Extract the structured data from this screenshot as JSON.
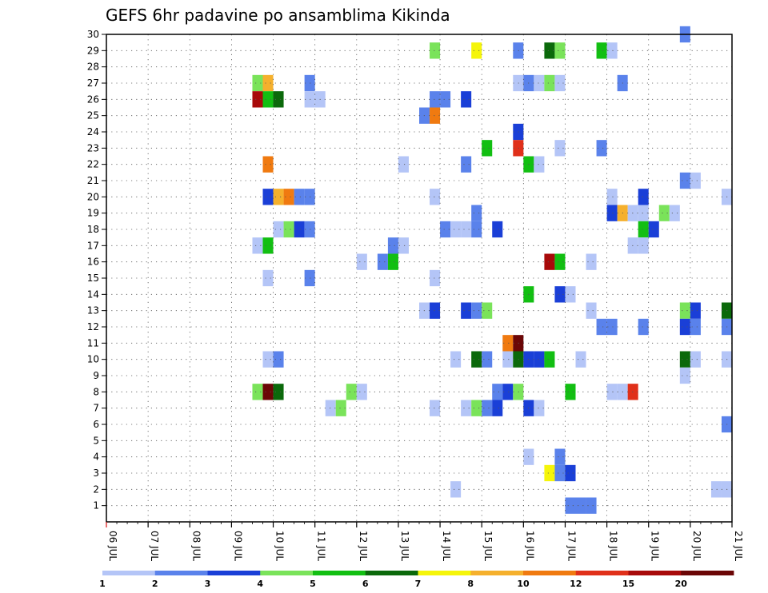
{
  "chart_data": {
    "type": "heatmap",
    "title": "GEFS 6hr padavine po ansamblima Kikinda",
    "xlabel": "",
    "ylabel": "",
    "x_range_days": [
      6,
      21
    ],
    "x_tick_labels": [
      "06 JUL",
      "07 JUL",
      "08 JUL",
      "09 JUL",
      "10 JUL",
      "11 JUL",
      "12 JUL",
      "13 JUL",
      "14 JUL",
      "15 JUL",
      "16 JUL",
      "17 JUL",
      "18 JUL",
      "19 JUL",
      "20 JUL",
      "21 JUL"
    ],
    "y_range": [
      0,
      30
    ],
    "y_tick_labels": [
      "1",
      "2",
      "3",
      "4",
      "5",
      "6",
      "7",
      "8",
      "9",
      "10",
      "11",
      "12",
      "13",
      "14",
      "15",
      "16",
      "17",
      "18",
      "19",
      "20",
      "21",
      "22",
      "23",
      "24",
      "25",
      "26",
      "27",
      "28",
      "29",
      "30"
    ],
    "grid": true,
    "time_step_hours": 6,
    "color_scale": {
      "thresholds": [
        "1",
        "2",
        "3",
        "4",
        "5",
        "6",
        "7",
        "8",
        "10",
        "12",
        "15",
        "20"
      ],
      "colors": [
        "#b4c5f7",
        "#5a82eb",
        "#1a3fd7",
        "#7ae35a",
        "#12bf12",
        "#0b690b",
        "#f5f50a",
        "#f5b02d",
        "#f07a10",
        "#e0301a",
        "#a80a0a",
        "#6b0606"
      ]
    },
    "cells": [
      {
        "m": 30,
        "day": 19.875,
        "c": 1
      },
      {
        "m": 29,
        "day": 13.875,
        "c": 3
      },
      {
        "m": 29,
        "day": 14.875,
        "c": 6
      },
      {
        "m": 29,
        "day": 15.875,
        "c": 1
      },
      {
        "m": 29,
        "day": 16.625,
        "c": 5
      },
      {
        "m": 29,
        "day": 16.875,
        "c": 3
      },
      {
        "m": 29,
        "day": 17.875,
        "c": 4
      },
      {
        "m": 29,
        "day": 18.125,
        "c": 0
      },
      {
        "m": 27,
        "day": 9.625,
        "c": 3
      },
      {
        "m": 27,
        "day": 9.875,
        "c": 7
      },
      {
        "m": 27,
        "day": 10.875,
        "c": 1
      },
      {
        "m": 27,
        "day": 15.875,
        "c": 0
      },
      {
        "m": 27,
        "day": 16.125,
        "c": 1
      },
      {
        "m": 27,
        "day": 16.375,
        "c": 0
      },
      {
        "m": 27,
        "day": 16.625,
        "c": 3
      },
      {
        "m": 27,
        "day": 16.875,
        "c": 0
      },
      {
        "m": 27,
        "day": 18.375,
        "c": 1
      },
      {
        "m": 26,
        "day": 9.625,
        "c": 10
      },
      {
        "m": 26,
        "day": 9.875,
        "c": 4
      },
      {
        "m": 26,
        "day": 10.125,
        "c": 5
      },
      {
        "m": 26,
        "day": 10.875,
        "c": 0
      },
      {
        "m": 26,
        "day": 11.125,
        "c": 0
      },
      {
        "m": 26,
        "day": 13.875,
        "c": 1
      },
      {
        "m": 26,
        "day": 14.125,
        "c": 1
      },
      {
        "m": 26,
        "day": 14.625,
        "c": 2
      },
      {
        "m": 25,
        "day": 13.625,
        "c": 1
      },
      {
        "m": 25,
        "day": 13.875,
        "c": 8
      },
      {
        "m": 24,
        "day": 15.875,
        "c": 2
      },
      {
        "m": 23,
        "day": 15.125,
        "c": 4
      },
      {
        "m": 23,
        "day": 15.875,
        "c": 9
      },
      {
        "m": 23,
        "day": 16.875,
        "c": 0
      },
      {
        "m": 23,
        "day": 17.875,
        "c": 1
      },
      {
        "m": 22,
        "day": 9.875,
        "c": 8
      },
      {
        "m": 22,
        "day": 13.125,
        "c": 0
      },
      {
        "m": 22,
        "day": 14.625,
        "c": 1
      },
      {
        "m": 22,
        "day": 16.125,
        "c": 4
      },
      {
        "m": 22,
        "day": 16.375,
        "c": 0
      },
      {
        "m": 21,
        "day": 19.875,
        "c": 1
      },
      {
        "m": 21,
        "day": 20.125,
        "c": 0
      },
      {
        "m": 20,
        "day": 9.875,
        "c": 2
      },
      {
        "m": 20,
        "day": 10.125,
        "c": 7
      },
      {
        "m": 20,
        "day": 10.375,
        "c": 8
      },
      {
        "m": 20,
        "day": 10.625,
        "c": 1
      },
      {
        "m": 20,
        "day": 10.875,
        "c": 1
      },
      {
        "m": 20,
        "day": 13.875,
        "c": 0
      },
      {
        "m": 20,
        "day": 18.125,
        "c": 0
      },
      {
        "m": 20,
        "day": 18.875,
        "c": 2
      },
      {
        "m": 20,
        "day": 20.875,
        "c": 0
      },
      {
        "m": 19,
        "day": 14.875,
        "c": 1
      },
      {
        "m": 19,
        "day": 18.125,
        "c": 2
      },
      {
        "m": 19,
        "day": 18.375,
        "c": 7
      },
      {
        "m": 19,
        "day": 18.625,
        "c": 0
      },
      {
        "m": 19,
        "day": 18.875,
        "c": 0
      },
      {
        "m": 19,
        "day": 19.375,
        "c": 3
      },
      {
        "m": 19,
        "day": 19.625,
        "c": 0
      },
      {
        "m": 18,
        "day": 10.125,
        "c": 0
      },
      {
        "m": 18,
        "day": 10.375,
        "c": 3
      },
      {
        "m": 18,
        "day": 10.625,
        "c": 2
      },
      {
        "m": 18,
        "day": 10.875,
        "c": 1
      },
      {
        "m": 18,
        "day": 14.125,
        "c": 1
      },
      {
        "m": 18,
        "day": 14.375,
        "c": 0
      },
      {
        "m": 18,
        "day": 14.625,
        "c": 0
      },
      {
        "m": 18,
        "day": 14.875,
        "c": 1
      },
      {
        "m": 18,
        "day": 15.375,
        "c": 2
      },
      {
        "m": 18,
        "day": 18.875,
        "c": 4
      },
      {
        "m": 18,
        "day": 19.125,
        "c": 2
      },
      {
        "m": 17,
        "day": 9.625,
        "c": 0
      },
      {
        "m": 17,
        "day": 9.875,
        "c": 4
      },
      {
        "m": 17,
        "day": 12.875,
        "c": 1
      },
      {
        "m": 17,
        "day": 13.125,
        "c": 0
      },
      {
        "m": 17,
        "day": 18.625,
        "c": 0
      },
      {
        "m": 17,
        "day": 18.875,
        "c": 0
      },
      {
        "m": 16,
        "day": 12.125,
        "c": 0
      },
      {
        "m": 16,
        "day": 12.625,
        "c": 1
      },
      {
        "m": 16,
        "day": 12.875,
        "c": 4
      },
      {
        "m": 16,
        "day": 16.625,
        "c": 10
      },
      {
        "m": 16,
        "day": 16.875,
        "c": 4
      },
      {
        "m": 16,
        "day": 17.625,
        "c": 0
      },
      {
        "m": 15,
        "day": 9.875,
        "c": 0
      },
      {
        "m": 15,
        "day": 10.875,
        "c": 1
      },
      {
        "m": 15,
        "day": 13.875,
        "c": 0
      },
      {
        "m": 14,
        "day": 16.125,
        "c": 4
      },
      {
        "m": 14,
        "day": 16.875,
        "c": 2
      },
      {
        "m": 14,
        "day": 17.125,
        "c": 0
      },
      {
        "m": 13,
        "day": 13.625,
        "c": 0
      },
      {
        "m": 13,
        "day": 13.875,
        "c": 2
      },
      {
        "m": 13,
        "day": 14.625,
        "c": 2
      },
      {
        "m": 13,
        "day": 14.875,
        "c": 1
      },
      {
        "m": 13,
        "day": 15.125,
        "c": 3
      },
      {
        "m": 13,
        "day": 17.625,
        "c": 0
      },
      {
        "m": 13,
        "day": 19.875,
        "c": 3
      },
      {
        "m": 13,
        "day": 20.125,
        "c": 2
      },
      {
        "m": 13,
        "day": 20.875,
        "c": 5
      },
      {
        "m": 12,
        "day": 17.875,
        "c": 1
      },
      {
        "m": 12,
        "day": 18.125,
        "c": 1
      },
      {
        "m": 12,
        "day": 18.875,
        "c": 1
      },
      {
        "m": 12,
        "day": 19.875,
        "c": 2
      },
      {
        "m": 12,
        "day": 20.125,
        "c": 1
      },
      {
        "m": 12,
        "day": 20.875,
        "c": 1
      },
      {
        "m": 11,
        "day": 15.625,
        "c": 8
      },
      {
        "m": 11,
        "day": 15.875,
        "c": 11
      },
      {
        "m": 10,
        "day": 9.875,
        "c": 0
      },
      {
        "m": 10,
        "day": 10.125,
        "c": 1
      },
      {
        "m": 10,
        "day": 14.375,
        "c": 0
      },
      {
        "m": 10,
        "day": 14.875,
        "c": 5
      },
      {
        "m": 10,
        "day": 15.125,
        "c": 1
      },
      {
        "m": 10,
        "day": 15.625,
        "c": 0
      },
      {
        "m": 10,
        "day": 15.875,
        "c": 5
      },
      {
        "m": 10,
        "day": 16.125,
        "c": 2
      },
      {
        "m": 10,
        "day": 16.375,
        "c": 2
      },
      {
        "m": 10,
        "day": 16.625,
        "c": 4
      },
      {
        "m": 10,
        "day": 17.375,
        "c": 0
      },
      {
        "m": 10,
        "day": 19.875,
        "c": 5
      },
      {
        "m": 10,
        "day": 20.125,
        "c": 0
      },
      {
        "m": 10,
        "day": 20.875,
        "c": 0
      },
      {
        "m": 9,
        "day": 19.875,
        "c": 0
      },
      {
        "m": 8,
        "day": 9.625,
        "c": 3
      },
      {
        "m": 8,
        "day": 9.875,
        "c": 11
      },
      {
        "m": 8,
        "day": 10.125,
        "c": 5
      },
      {
        "m": 8,
        "day": 11.875,
        "c": 3
      },
      {
        "m": 8,
        "day": 12.125,
        "c": 0
      },
      {
        "m": 8,
        "day": 15.375,
        "c": 1
      },
      {
        "m": 8,
        "day": 15.625,
        "c": 2
      },
      {
        "m": 8,
        "day": 15.875,
        "c": 3
      },
      {
        "m": 8,
        "day": 17.125,
        "c": 4
      },
      {
        "m": 8,
        "day": 18.125,
        "c": 0
      },
      {
        "m": 8,
        "day": 18.375,
        "c": 0
      },
      {
        "m": 8,
        "day": 18.625,
        "c": 9
      },
      {
        "m": 7,
        "day": 11.375,
        "c": 0
      },
      {
        "m": 7,
        "day": 11.625,
        "c": 3
      },
      {
        "m": 7,
        "day": 13.875,
        "c": 0
      },
      {
        "m": 7,
        "day": 14.625,
        "c": 0
      },
      {
        "m": 7,
        "day": 14.875,
        "c": 3
      },
      {
        "m": 7,
        "day": 15.125,
        "c": 1
      },
      {
        "m": 7,
        "day": 15.375,
        "c": 2
      },
      {
        "m": 7,
        "day": 16.125,
        "c": 2
      },
      {
        "m": 7,
        "day": 16.375,
        "c": 0
      },
      {
        "m": 6,
        "day": 20.875,
        "c": 1
      },
      {
        "m": 4,
        "day": 16.125,
        "c": 0
      },
      {
        "m": 4,
        "day": 16.875,
        "c": 1
      },
      {
        "m": 3,
        "day": 16.625,
        "c": 6
      },
      {
        "m": 3,
        "day": 16.875,
        "c": 1
      },
      {
        "m": 3,
        "day": 17.125,
        "c": 2
      },
      {
        "m": 2,
        "day": 14.375,
        "c": 0
      },
      {
        "m": 2,
        "day": 20.625,
        "c": 0
      },
      {
        "m": 2,
        "day": 20.875,
        "c": 0
      },
      {
        "m": 1,
        "day": 17.125,
        "c": 1
      },
      {
        "m": 1,
        "day": 17.375,
        "c": 1
      },
      {
        "m": 1,
        "day": 17.625,
        "c": 1
      }
    ]
  }
}
